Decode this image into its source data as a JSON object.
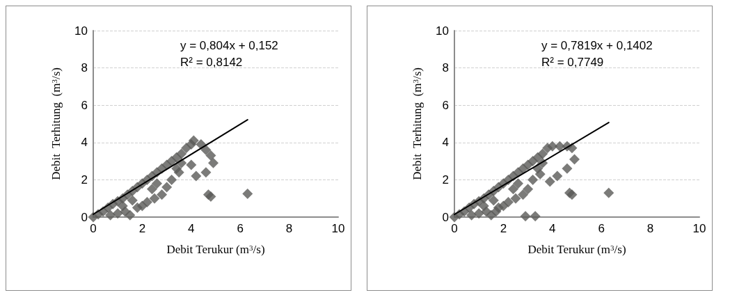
{
  "chart_data": [
    {
      "type": "scatter",
      "xlabel": "Debit Terukur (m$^{3}$/s)",
      "ylabel": "Debit  Terhitung  (m$^{3}$/s)",
      "xlim": [
        0,
        10
      ],
      "xticks": [
        0,
        2,
        4,
        6,
        8,
        10
      ],
      "ylim": [
        0,
        10
      ],
      "yticks": [
        0,
        2,
        4,
        6,
        8,
        10
      ],
      "grid": "y",
      "annotations": [
        "y = 0,804x + 0,152",
        "R² = 0,8142"
      ],
      "series": [
        {
          "color": "#5a5a58",
          "marker": "diamond",
          "x": [
            0,
            0.2,
            0.4,
            0.6,
            0.8,
            1,
            1.2,
            1.4,
            1.6,
            1.8,
            2,
            2.2,
            2.4,
            2.6,
            2.8,
            3,
            3.2,
            3.4,
            3.6,
            3.8,
            4,
            4.1,
            4.4,
            4.6,
            4.8,
            4.9,
            4.6,
            4.2,
            4,
            3.5,
            3,
            2.8,
            2.5,
            2.2,
            2,
            1.8,
            1.5,
            1.3,
            1,
            0.7,
            1.2,
            1.6,
            2.4,
            3.2,
            3.6,
            4.7,
            4.8,
            6.3,
            2.6,
            3.4
          ],
          "values": [
            0,
            0.15,
            0.3,
            0.5,
            0.7,
            0.85,
            1,
            1.2,
            1.4,
            1.6,
            1.8,
            2,
            2.2,
            2.4,
            2.6,
            2.8,
            3,
            3.2,
            3.4,
            3.7,
            3.9,
            4.1,
            3.9,
            3.6,
            3.3,
            2.9,
            2.4,
            2.2,
            2.8,
            2.4,
            1.6,
            1.2,
            1,
            0.8,
            0.6,
            0.5,
            0.1,
            0.3,
            0.2,
            0.1,
            0.6,
            0.9,
            1.5,
            2,
            2.9,
            1.2,
            1.1,
            1.25,
            1.8,
            2.6
          ]
        },
        {
          "type": "line",
          "color": "#000000",
          "marker": "none",
          "line_style": "solid",
          "x": [
            0,
            6.3
          ],
          "values": [
            0.15,
            5.22
          ]
        }
      ]
    },
    {
      "type": "scatter",
      "xlabel": "Debit Terukur (m$^{3}$/s)",
      "ylabel": "Debit  Terhitung  (m$^{3}$/s)",
      "xlim": [
        0,
        10
      ],
      "xticks": [
        0,
        2,
        4,
        6,
        8,
        10
      ],
      "ylim": [
        0,
        10
      ],
      "yticks": [
        0,
        2,
        4,
        6,
        8,
        10
      ],
      "grid": "y",
      "annotations": [
        "y = 0,7819x + 0,1402",
        "R² = 0,7749"
      ],
      "series": [
        {
          "color": "#5a5a58",
          "marker": "diamond",
          "x": [
            0,
            0.2,
            0.4,
            0.6,
            0.8,
            1,
            1.2,
            1.4,
            1.6,
            1.8,
            2,
            2.2,
            2.4,
            2.6,
            2.8,
            3,
            3.2,
            3.4,
            3.6,
            3.8,
            4,
            4.3,
            4.6,
            4.8,
            4.9,
            4.6,
            4.2,
            3.9,
            3.5,
            3,
            2.8,
            2.5,
            2.2,
            2,
            1.8,
            1.5,
            1.7,
            1.3,
            1,
            0.7,
            1.2,
            1.6,
            2.4,
            3.2,
            3.6,
            4.7,
            4.8,
            6.3,
            2.9,
            3.3,
            2.6,
            3.4
          ],
          "values": [
            0,
            0.15,
            0.3,
            0.5,
            0.7,
            0.85,
            1,
            1.2,
            1.4,
            1.6,
            1.8,
            2,
            2.2,
            2.4,
            2.6,
            2.8,
            3,
            3.2,
            3.4,
            3.7,
            3.8,
            3.8,
            3.8,
            3.7,
            3.1,
            2.6,
            2.2,
            1.9,
            2.3,
            1.5,
            1.2,
            1,
            0.8,
            0.6,
            0.5,
            0.1,
            0.3,
            0.3,
            0.2,
            0.1,
            0.6,
            0.9,
            1.5,
            2,
            2.9,
            1.3,
            1.2,
            1.3,
            0.05,
            0.05,
            1.8,
            2.6
          ]
        },
        {
          "type": "line",
          "color": "#000000",
          "marker": "none",
          "line_style": "solid",
          "x": [
            0,
            6.3
          ],
          "values": [
            0.14,
            5.07
          ]
        }
      ]
    }
  ]
}
